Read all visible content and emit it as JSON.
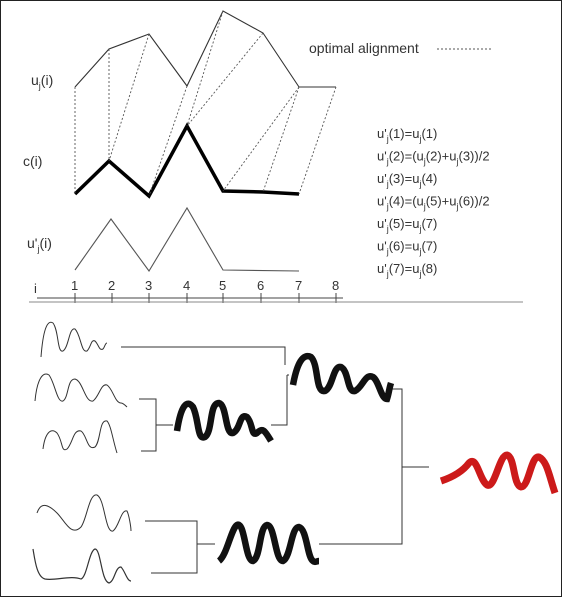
{
  "labels": {
    "u_series": "u",
    "u_sub": "j",
    "u_arg": "(i)",
    "c_series": "c(i)",
    "uprime_series": "u'",
    "uprime_sub": "j",
    "uprime_arg": "(i)",
    "axis_i": "i",
    "legend_text": "optimal alignment"
  },
  "axis_ticks": [
    "1",
    "2",
    "3",
    "4",
    "5",
    "6",
    "7",
    "8"
  ],
  "equations": [
    {
      "lhs": "u'",
      "sub": "j",
      "rest": "(1)=u",
      "sub2": "j",
      "rest2": "(1)"
    },
    {
      "lhs": "u'",
      "sub": "j",
      "rest": "(2)=(u",
      "sub2": "j",
      "rest2": "(2)+u",
      "sub3": "j",
      "rest3": "(3))/2"
    },
    {
      "lhs": "u'",
      "sub": "j",
      "rest": "(3)=u",
      "sub2": "j",
      "rest2": "(4)"
    },
    {
      "lhs": "u'",
      "sub": "j",
      "rest": "(4)=(u",
      "sub2": "j",
      "rest2": "(5)+u",
      "sub3": "j",
      "rest3": "(6))/2"
    },
    {
      "lhs": "u'",
      "sub": "j",
      "rest": "(5)=u",
      "sub2": "j",
      "rest2": "(7)"
    },
    {
      "lhs": "u'",
      "sub": "j",
      "rest": "(6)=u",
      "sub2": "j",
      "rest2": "(7)"
    },
    {
      "lhs": "u'",
      "sub": "j",
      "rest": "(7)=u",
      "sub2": "j",
      "rest2": "(8)"
    }
  ],
  "colors": {
    "thin_line": "#333333",
    "bold_line": "#000000",
    "merged_black": "#111111",
    "final_red": "#cc1a1a",
    "divider": "#888888"
  }
}
